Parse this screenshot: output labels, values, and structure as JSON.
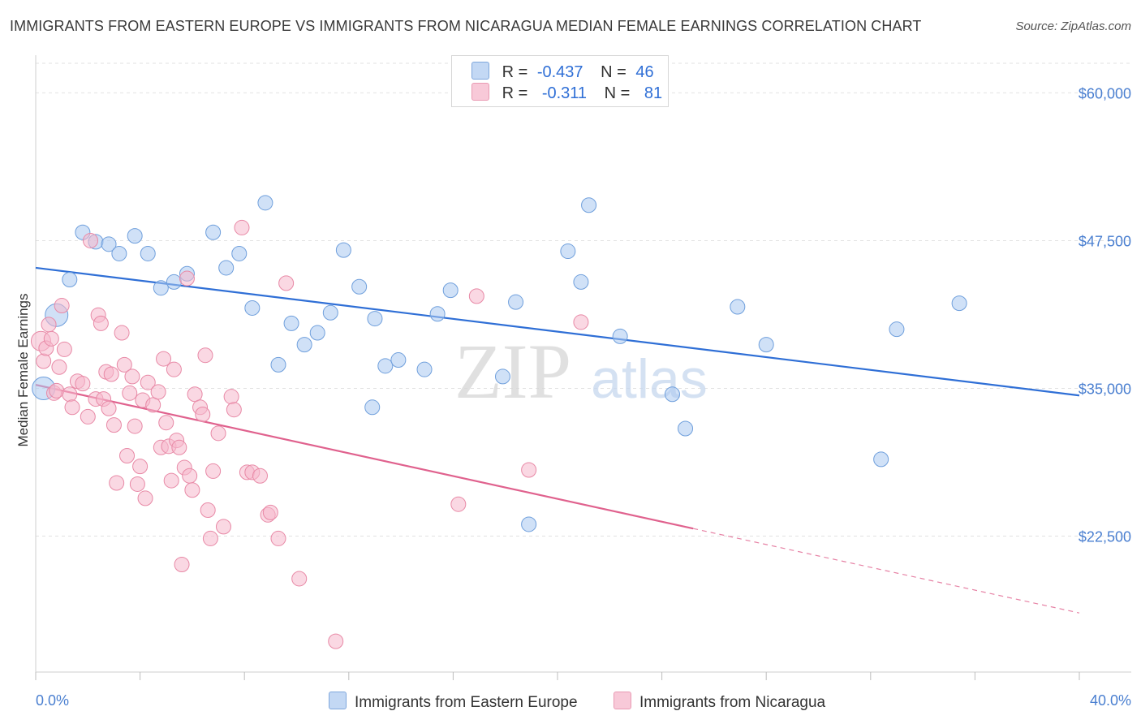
{
  "title": "IMMIGRANTS FROM EASTERN EUROPE VS IMMIGRANTS FROM NICARAGUA MEDIAN FEMALE EARNINGS CORRELATION CHART",
  "source": "Source: ZipAtlas.com",
  "watermark": {
    "zip": "ZIP",
    "atlas": "atlas"
  },
  "legend_top": [
    {
      "r_label": "R =",
      "r_value": "-0.437",
      "n_label": "N =",
      "n_value": "46",
      "color": "#a9c8f0"
    },
    {
      "r_label": "R =",
      "r_value": "-0.311",
      "n_label": "N =",
      "n_value": "81",
      "color": "#f5b8cc"
    }
  ],
  "chart_data": {
    "type": "scatter",
    "ylabel": "Median Female Earnings",
    "x_tick_labels": [
      "0.0%",
      "40.0%"
    ],
    "xlim": [
      0,
      40
    ],
    "ylim": [
      11000,
      62500
    ],
    "y_ticks": [
      {
        "value": 22500,
        "label": "$22,500"
      },
      {
        "value": 35000,
        "label": "$35,000"
      },
      {
        "value": 47500,
        "label": "$47,500"
      },
      {
        "value": 60000,
        "label": "$60,000"
      }
    ],
    "grid": true,
    "series": [
      {
        "name": "Immigrants from Eastern Europe",
        "color": "#a9c8f0",
        "stroke": "#6f9fdc",
        "trend_color": "#2f6fd6",
        "trend": {
          "x0": 0,
          "y0": 45200,
          "x1": 40,
          "y1": 34400,
          "solid_until": 40
        },
        "points": [
          [
            0.3,
            35000
          ],
          [
            0.8,
            41200
          ],
          [
            1.3,
            44200
          ],
          [
            1.8,
            48200
          ],
          [
            2.3,
            47400
          ],
          [
            2.8,
            47200
          ],
          [
            3.2,
            46400
          ],
          [
            3.8,
            47900
          ],
          [
            4.3,
            46400
          ],
          [
            4.8,
            43500
          ],
          [
            5.3,
            44000
          ],
          [
            5.8,
            44700
          ],
          [
            6.8,
            48200
          ],
          [
            7.3,
            45200
          ],
          [
            7.8,
            46400
          ],
          [
            8.3,
            41800
          ],
          [
            8.8,
            50700
          ],
          [
            9.3,
            37000
          ],
          [
            9.8,
            40500
          ],
          [
            10.3,
            38700
          ],
          [
            10.8,
            39700
          ],
          [
            11.3,
            41400
          ],
          [
            11.8,
            46700
          ],
          [
            12.4,
            43600
          ],
          [
            12.9,
            33400
          ],
          [
            13.0,
            40900
          ],
          [
            13.4,
            36900
          ],
          [
            13.9,
            37400
          ],
          [
            14.9,
            36600
          ],
          [
            15.4,
            41300
          ],
          [
            15.9,
            43300
          ],
          [
            17.9,
            36000
          ],
          [
            18.4,
            42300
          ],
          [
            18.9,
            23500
          ],
          [
            20.4,
            46600
          ],
          [
            20.9,
            44000
          ],
          [
            21.2,
            50500
          ],
          [
            22.4,
            39400
          ],
          [
            24.4,
            34500
          ],
          [
            24.9,
            31600
          ],
          [
            26.9,
            41900
          ],
          [
            28.0,
            38700
          ],
          [
            32.4,
            29000
          ],
          [
            33.0,
            40000
          ],
          [
            35.4,
            42200
          ]
        ]
      },
      {
        "name": "Immigrants from Nicaragua",
        "color": "#f5b8cc",
        "stroke": "#e889a6",
        "trend_color": "#e0628e",
        "trend": {
          "x0": 0,
          "y0": 35300,
          "x1": 40,
          "y1": 16000,
          "solid_until": 25.2
        },
        "points": [
          [
            0.2,
            39000
          ],
          [
            0.3,
            37300
          ],
          [
            0.4,
            38400
          ],
          [
            0.5,
            40400
          ],
          [
            0.6,
            39200
          ],
          [
            0.7,
            34600
          ],
          [
            0.8,
            34800
          ],
          [
            0.9,
            36800
          ],
          [
            1.0,
            42000
          ],
          [
            1.1,
            38300
          ],
          [
            1.3,
            34500
          ],
          [
            1.4,
            33400
          ],
          [
            1.6,
            35600
          ],
          [
            1.8,
            35400
          ],
          [
            2.0,
            32600
          ],
          [
            2.1,
            47500
          ],
          [
            2.3,
            34100
          ],
          [
            2.4,
            41200
          ],
          [
            2.5,
            40500
          ],
          [
            2.6,
            34100
          ],
          [
            2.7,
            36400
          ],
          [
            2.8,
            33300
          ],
          [
            2.9,
            36200
          ],
          [
            3.0,
            31900
          ],
          [
            3.1,
            27000
          ],
          [
            3.3,
            39700
          ],
          [
            3.4,
            37000
          ],
          [
            3.5,
            29300
          ],
          [
            3.6,
            34600
          ],
          [
            3.7,
            36000
          ],
          [
            3.8,
            31800
          ],
          [
            3.9,
            26900
          ],
          [
            4.0,
            28400
          ],
          [
            4.1,
            34000
          ],
          [
            4.2,
            25700
          ],
          [
            4.3,
            35500
          ],
          [
            4.5,
            33600
          ],
          [
            4.7,
            34700
          ],
          [
            4.8,
            30000
          ],
          [
            4.9,
            37500
          ],
          [
            5.0,
            32100
          ],
          [
            5.1,
            30100
          ],
          [
            5.2,
            27200
          ],
          [
            5.3,
            36600
          ],
          [
            5.4,
            30600
          ],
          [
            5.5,
            30000
          ],
          [
            5.6,
            20100
          ],
          [
            5.7,
            28300
          ],
          [
            5.8,
            44300
          ],
          [
            5.9,
            27600
          ],
          [
            6.0,
            26400
          ],
          [
            6.1,
            34500
          ],
          [
            6.3,
            33400
          ],
          [
            6.4,
            32800
          ],
          [
            6.5,
            37800
          ],
          [
            6.6,
            24700
          ],
          [
            6.7,
            22300
          ],
          [
            6.8,
            28000
          ],
          [
            7.0,
            31200
          ],
          [
            7.2,
            23300
          ],
          [
            7.5,
            34300
          ],
          [
            7.6,
            33200
          ],
          [
            7.9,
            48600
          ],
          [
            8.1,
            27900
          ],
          [
            8.3,
            27900
          ],
          [
            8.6,
            27600
          ],
          [
            8.9,
            24300
          ],
          [
            9.0,
            24500
          ],
          [
            9.3,
            22300
          ],
          [
            9.6,
            43900
          ],
          [
            10.1,
            18900
          ],
          [
            11.5,
            13600
          ],
          [
            16.2,
            25200
          ],
          [
            16.9,
            42800
          ],
          [
            18.9,
            28100
          ],
          [
            20.9,
            40600
          ]
        ]
      }
    ]
  }
}
